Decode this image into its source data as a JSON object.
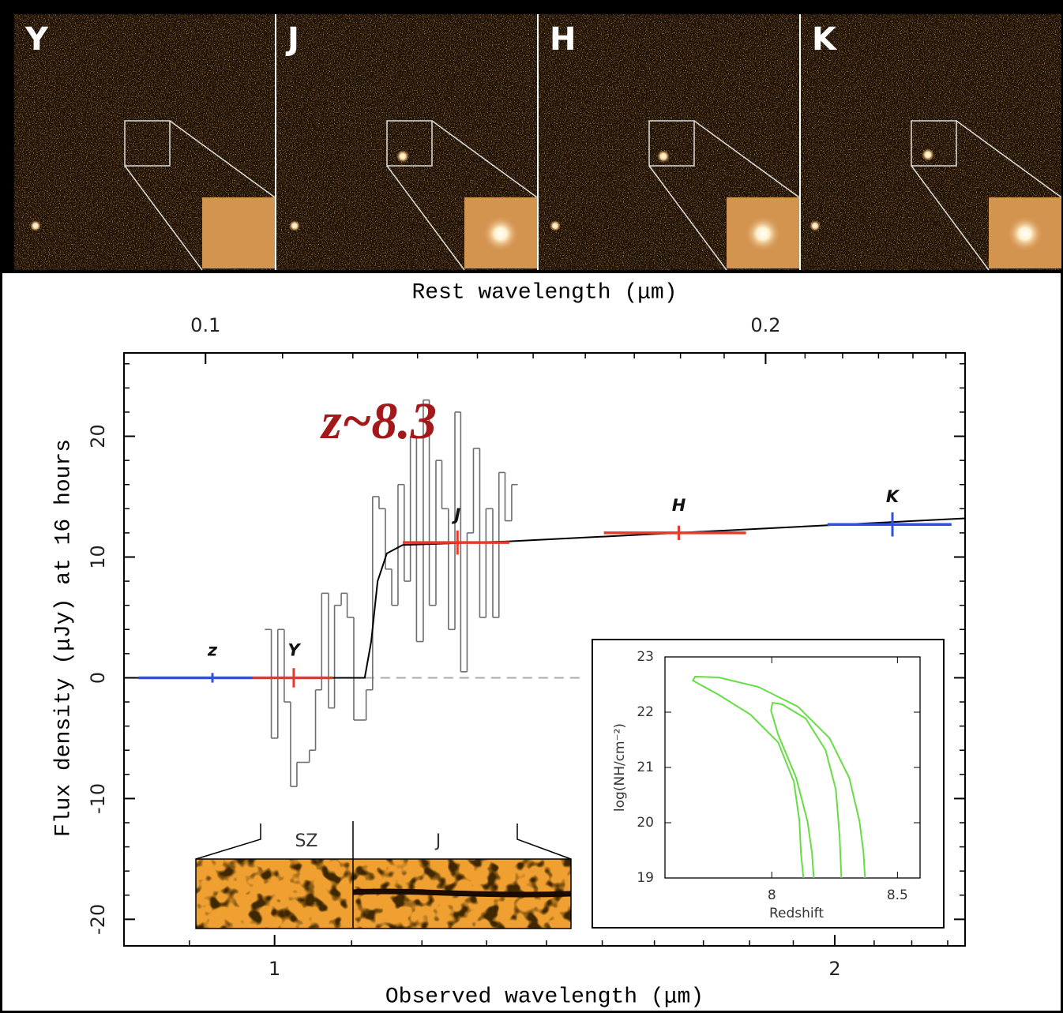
{
  "image_panels": [
    "Y",
    "J",
    "H",
    "K"
  ],
  "chart_data": [
    {
      "type": "spectrum",
      "annotation": "z~8.3",
      "xlabel": "Observed wavelength (μm)",
      "x2label": "Rest wavelength (μm)",
      "ylabel": "Flux density (μJy) at 16 hours",
      "xscale": "log",
      "xlim": [
        0.83,
        2.35
      ],
      "xticks": [
        1,
        2
      ],
      "xminorticks": [
        0.9,
        1.1,
        1.2,
        1.3,
        1.4,
        1.5,
        1.6,
        1.7,
        1.8,
        1.9,
        2.1,
        2.2,
        2.3
      ],
      "x2lim": [
        0.0904,
        0.256
      ],
      "x2ticks": [
        0.1,
        0.2
      ],
      "x2minorticks": [
        0.11,
        0.12,
        0.13,
        0.14,
        0.15,
        0.16,
        0.17,
        0.18,
        0.19,
        0.21,
        0.22,
        0.23,
        0.24,
        0.25
      ],
      "ylim": [
        -22.2,
        26.9
      ],
      "yticks": [
        -20,
        -10,
        0,
        10,
        20
      ],
      "yminorticks": [
        -18,
        -16,
        -14,
        -12,
        -8,
        -6,
        -4,
        -2,
        2,
        4,
        6,
        8,
        12,
        14,
        16,
        18,
        22,
        24,
        26
      ],
      "spectrum": {
        "color": "#6e6e6e",
        "bins": [
          0.988,
          0.996,
          1.004,
          1.012,
          1.02,
          1.028,
          1.036,
          1.044,
          1.052,
          1.06,
          1.069,
          1.077,
          1.086,
          1.094,
          1.103,
          1.111,
          1.12,
          1.129,
          1.138,
          1.147,
          1.156,
          1.165,
          1.174,
          1.183,
          1.192,
          1.202,
          1.211,
          1.221,
          1.23,
          1.24,
          1.25,
          1.259,
          1.269,
          1.279,
          1.289,
          1.299,
          1.31,
          1.32,
          1.33,
          1.341,
          1.351
        ],
        "values": [
          4,
          -5,
          4,
          -2,
          -9,
          -7,
          -7,
          -6,
          -1,
          7,
          -2.5,
          6,
          7,
          5,
          -3.5,
          -3.5,
          -1,
          15,
          14,
          9,
          6,
          16,
          8,
          20,
          3,
          23,
          6,
          18,
          14,
          4,
          22,
          0.5,
          12,
          19,
          5,
          14,
          5,
          17,
          13,
          16
        ]
      },
      "model": {
        "color": "#000000",
        "x": [
          0.83,
          1.118,
          1.127,
          1.136,
          1.149,
          1.172,
          1.337,
          2.35
        ],
        "y": [
          0,
          0,
          3,
          8,
          10.3,
          11.0,
          11.3,
          13.2
        ]
      },
      "zero_line": {
        "y": 0,
        "x": [
          1.118,
          1.467
        ],
        "color": "#aaaaaa"
      },
      "photometry": [
        {
          "name": "z",
          "color": "#3050e8",
          "x": 0.926,
          "xmin": 0.845,
          "xmax": 0.973,
          "y": 0,
          "yerr": 0.4
        },
        {
          "name": "Y",
          "color": "#e83a2a",
          "x": 1.024,
          "xmin": 0.973,
          "xmax": 1.075,
          "y": 0,
          "yerr": 0.8
        },
        {
          "name": "J",
          "color": "#e83a2a",
          "x": 1.254,
          "xmin": 1.172,
          "xmax": 1.337,
          "y": 11.2,
          "yerr": 1.0
        },
        {
          "name": "H",
          "color": "#e83a2a",
          "x": 1.649,
          "xmin": 1.503,
          "xmax": 1.792,
          "y": 12.0,
          "yerr": 0.6
        },
        {
          "name": "K",
          "color": "#3050e8",
          "x": 2.148,
          "xmin": 1.982,
          "xmax": 2.311,
          "y": 12.7,
          "yerr": 1.0
        }
      ],
      "spectrum_image": {
        "labels": [
          "SZ",
          "J"
        ]
      }
    },
    {
      "type": "contour",
      "xlabel": "Redshift",
      "ylabel": "log(NH/cm⁻²)",
      "xlim": [
        7.575,
        8.59
      ],
      "xticks": [
        8,
        8.5
      ],
      "ylim": [
        19,
        23
      ],
      "yticks": [
        19,
        20,
        21,
        22,
        23
      ],
      "contours": [
        {
          "color": "#66dd44",
          "x": [
            8.126,
            8.116,
            8.11,
            8.088,
            8.025,
            7.915,
            7.789,
            7.686,
            7.695,
            7.789,
            7.947,
            8.104,
            8.23,
            8.308,
            8.349,
            8.365,
            8.371
          ],
          "y": [
            19,
            19.457,
            20.029,
            20.743,
            21.457,
            21.957,
            22.314,
            22.571,
            22.643,
            22.629,
            22.457,
            22.1,
            21.529,
            20.814,
            20.029,
            19.457,
            19
          ]
        },
        {
          "color": "#66dd44",
          "x": [
            8.167,
            8.16,
            8.142,
            8.097,
            8.025,
            7.997,
            8.003,
            8.041,
            8.135,
            8.214,
            8.255,
            8.27,
            8.277
          ],
          "y": [
            19,
            19.457,
            20.029,
            20.814,
            21.6,
            22.029,
            22.171,
            22.143,
            21.886,
            21.314,
            20.6,
            19.743,
            19
          ]
        }
      ]
    }
  ]
}
